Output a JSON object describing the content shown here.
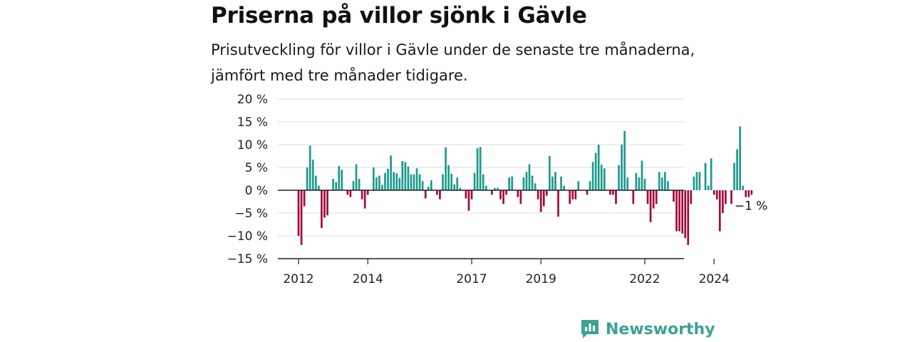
{
  "header": {
    "title": "Priserna på villor sjönk i Gävle",
    "subtitle": "Prisutveckling för villor i Gävle under de senaste tre månaderna, jämfört med tre månader tidigare."
  },
  "brand": {
    "name": "Newsworthy",
    "color": "#3aa394"
  },
  "chart_data": {
    "type": "bar",
    "title": "Priserna på villor sjönk i Gävle",
    "subtitle": "Prisutveckling för villor i Gävle under de senaste tre månaderna, jämfört med tre månader tidigare.",
    "xlabel": "",
    "ylabel": "",
    "x_start": "2012-01",
    "x_interval": "month",
    "ylim": [
      -15,
      20
    ],
    "y_ticks": [
      20,
      15,
      10,
      5,
      0,
      -5,
      -10,
      -15
    ],
    "y_tick_labels": [
      "20 %",
      "15 %",
      "10 %",
      "5 %",
      "0 %",
      "−5 %",
      "−10 %",
      "−15 %"
    ],
    "x_tick_labels": [
      {
        "label": "2012",
        "index": 0
      },
      {
        "label": "2014",
        "index": 24
      },
      {
        "label": "2017",
        "index": 60
      },
      {
        "label": "2019",
        "index": 84
      },
      {
        "label": "2022",
        "index": 120
      },
      {
        "label": "2024",
        "index": 144
      }
    ],
    "grid": true,
    "positive_color": "#1d9a8d",
    "negative_color": "#a3093d",
    "end_label": "−1 %",
    "values": [
      -10,
      -12,
      -3.5,
      5,
      9.8,
      6.7,
      3.2,
      1,
      -8.3,
      -6,
      -5.5,
      0,
      2.5,
      1.8,
      5.3,
      4.5,
      0,
      -1,
      -1.5,
      2,
      5.7,
      2.5,
      -2,
      -4,
      -1,
      0,
      5,
      2.8,
      3.2,
      1.2,
      3.8,
      4.7,
      7.6,
      4,
      3.7,
      2.7,
      6.4,
      6.2,
      5.2,
      3.5,
      3.5,
      4.8,
      3.5,
      2,
      -1.8,
      0.8,
      2.2,
      0,
      -1,
      -2,
      3.5,
      9.4,
      5.5,
      3.6,
      1.3,
      2.8,
      0.5,
      0,
      -1.8,
      -4.5,
      -2,
      3.8,
      9.2,
      9.5,
      3.5,
      1,
      0,
      -1,
      0.5,
      0.5,
      -2,
      -3,
      -1,
      2.8,
      3,
      0,
      -1.5,
      -3,
      2.8,
      4,
      5.7,
      3.2,
      1.5,
      -2,
      -4.8,
      -3.5,
      -1.2,
      7.5,
      3,
      4,
      -5.8,
      3,
      1,
      0,
      -3,
      -2,
      -2,
      2,
      0,
      0,
      -1,
      2,
      6.2,
      8.2,
      10,
      5.6,
      4.8,
      0,
      -1,
      -1,
      -3,
      5.5,
      10,
      13,
      2.8,
      0,
      -3,
      3.8,
      2.8,
      6.5,
      2.5,
      -3,
      -7,
      -4,
      -3,
      4,
      2.8,
      4,
      2,
      0,
      -2.5,
      -9,
      -9,
      -9.5,
      -10.5,
      -12,
      -3,
      3,
      4,
      4,
      0,
      6,
      1,
      7,
      -1,
      -2,
      -9,
      -5,
      -3,
      0,
      -3,
      6,
      9,
      14,
      1,
      -1.5,
      -1.5,
      -1
    ]
  }
}
